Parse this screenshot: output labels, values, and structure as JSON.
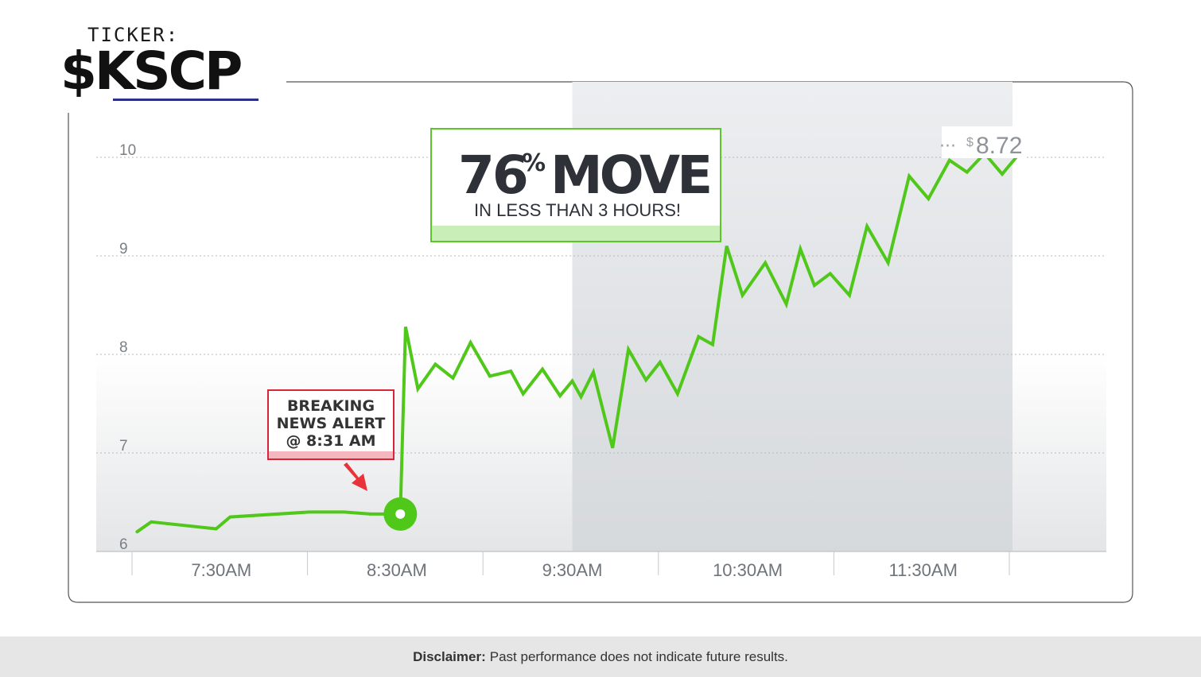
{
  "header": {
    "ticker_label": "TICKER:",
    "ticker_symbol": "$KSCP"
  },
  "callout_move": {
    "headline_number": "76",
    "headline_percent": "%",
    "headline_word": "MOVE",
    "subline": "IN LESS THAN 3 HOURS!"
  },
  "callout_news": {
    "line1": "BREAKING",
    "line2": "NEWS ALERT",
    "line3": "@ 8:31 AM"
  },
  "price_tag": {
    "dots": "···",
    "currency": "$",
    "value": "8.72"
  },
  "disclaimer": {
    "label": "Disclaimer:",
    "text": "Past performance does not indicate future results."
  },
  "colors": {
    "line": "#4fc81a",
    "callout_border": "#5cc52a",
    "news_border": "#d8253a",
    "arrow": "#e8333b",
    "shade": "#dcdfe2"
  },
  "chart_data": {
    "type": "line",
    "title": "",
    "xlabel": "",
    "ylabel": "",
    "ylim": [
      6,
      10
    ],
    "yticks": [
      "6",
      "7",
      "8",
      "9",
      "10"
    ],
    "ytick_values": [
      6,
      7,
      8,
      9,
      10
    ],
    "xticks": [
      "7:30AM",
      "8:30AM",
      "9:30AM",
      "10:30AM",
      "11:30AM"
    ],
    "xtick_times": [
      7.5,
      8.5,
      9.5,
      10.5,
      11.5
    ],
    "xlim": [
      7.0,
      12.0
    ],
    "shaded_region": [
      9.5,
      12.0
    ],
    "grid": true,
    "event_time": 8.52,
    "series": [
      {
        "x": [
          7.02,
          7.1,
          7.47,
          7.55,
          8.0,
          8.2,
          8.35,
          8.52,
          8.55,
          8.62,
          8.72,
          8.82,
          8.92,
          9.03,
          9.15,
          9.22,
          9.33,
          9.43,
          9.5,
          9.55,
          9.62,
          9.73,
          9.82,
          9.92,
          10.0,
          10.1,
          10.22,
          10.3,
          10.38,
          10.47,
          10.6,
          10.72,
          10.8,
          10.88,
          10.97,
          11.08,
          11.18,
          11.3,
          11.42,
          11.53,
          11.65,
          11.75,
          11.85,
          11.95,
          12.03
        ],
        "y": [
          6.2,
          6.3,
          6.23,
          6.35,
          6.4,
          6.4,
          6.38,
          6.38,
          8.28,
          7.65,
          7.9,
          7.76,
          8.12,
          7.78,
          7.83,
          7.6,
          7.85,
          7.58,
          7.73,
          7.57,
          7.82,
          7.05,
          8.05,
          7.74,
          7.92,
          7.6,
          8.18,
          8.1,
          9.1,
          8.6,
          8.93,
          8.51,
          9.07,
          8.7,
          8.82,
          8.6,
          9.3,
          8.93,
          9.81,
          9.58,
          9.97,
          9.85,
          10.04,
          9.83,
          10.0
        ]
      }
    ]
  }
}
